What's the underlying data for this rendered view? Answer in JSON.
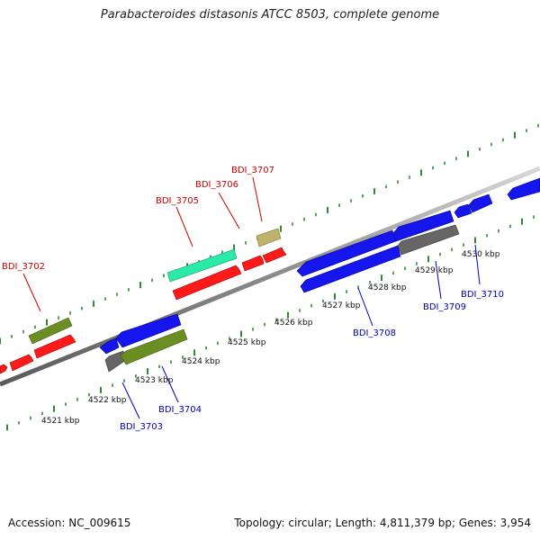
{
  "title": "Parabacteroides distasonis ATCC 8503, complete genome",
  "footer": {
    "accession": "Accession: NC_009615",
    "summary": "Topology: circular; Length: 4,811,379 bp; Genes: 3,954"
  },
  "colors": {
    "background": "#ffffff",
    "backbone": "#909090",
    "tick": "#2e8b2e",
    "forward_label": "#cc0000",
    "reverse_label": "#0000bb",
    "red": "#ff1a1a",
    "blue": "#1515ee",
    "olive": "#6b8e23",
    "teal": "#2aeaa8",
    "khaki": "#bdb36b",
    "gray": "#666666"
  },
  "scale": {
    "unit": "kbp",
    "labels": [
      "4521 kbp",
      "4522 kbp",
      "4523 kbp",
      "4524 kbp",
      "4525 kbp",
      "4526 kbp",
      "4527 kbp",
      "4528 kbp",
      "4529 kbp",
      "4530 kbp"
    ]
  },
  "forward_gene_labels": [
    "BDI_3702",
    "BDI_3705",
    "BDI_3706",
    "BDI_3707"
  ],
  "reverse_gene_labels": [
    "BDI_3703",
    "BDI_3704",
    "BDI_3708",
    "BDI_3709",
    "BDI_3710"
  ]
}
